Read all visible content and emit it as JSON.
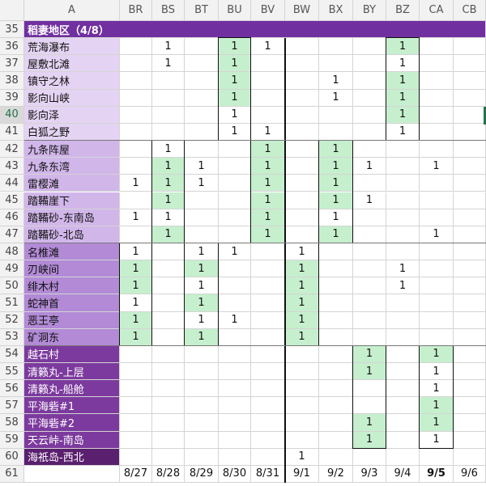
{
  "columns": {
    "row_header_label": "",
    "name_column": "A",
    "data_columns": [
      "BR",
      "BS",
      "BT",
      "BU",
      "BV",
      "BW",
      "BX",
      "BY",
      "BZ",
      "CA",
      "CB"
    ]
  },
  "section_header": {
    "row": "35",
    "title": "稻妻地区（4/8）"
  },
  "rows": [
    {
      "num": "36",
      "name": "荒海瀑布",
      "cells": [
        "",
        "1",
        "",
        "1",
        "1",
        "",
        "",
        "",
        "1",
        "",
        ""
      ]
    },
    {
      "num": "37",
      "name": "屋敷北滩",
      "cells": [
        "",
        "1",
        "",
        "1",
        "",
        "",
        "",
        "",
        "1",
        "",
        ""
      ]
    },
    {
      "num": "38",
      "name": "镇守之林",
      "cells": [
        "",
        "",
        "",
        "1",
        "",
        "",
        "1",
        "",
        "1",
        "",
        ""
      ]
    },
    {
      "num": "39",
      "name": "影向山峡",
      "cells": [
        "",
        "",
        "",
        "1",
        "",
        "",
        "1",
        "",
        "1",
        "",
        ""
      ]
    },
    {
      "num": "40",
      "name": "影向泽",
      "cells": [
        "",
        "",
        "",
        "1",
        "",
        "",
        "",
        "",
        "1",
        "",
        ""
      ]
    },
    {
      "num": "41",
      "name": "白狐之野",
      "cells": [
        "",
        "",
        "",
        "1",
        "1",
        "",
        "",
        "",
        "1",
        "",
        ""
      ]
    },
    {
      "num": "42",
      "name": "九条阵屋",
      "cells": [
        "",
        "1",
        "",
        "",
        "1",
        "",
        "1",
        "",
        "",
        "",
        ""
      ]
    },
    {
      "num": "43",
      "name": "九条东湾",
      "cells": [
        "",
        "1",
        "1",
        "",
        "1",
        "",
        "1",
        "1",
        "",
        "1",
        ""
      ]
    },
    {
      "num": "44",
      "name": "雷樱滩",
      "cells": [
        "1",
        "1",
        "1",
        "",
        "1",
        "",
        "1",
        "",
        "",
        "",
        ""
      ]
    },
    {
      "num": "45",
      "name": "踏鞴崖下",
      "cells": [
        "",
        "1",
        "",
        "",
        "1",
        "",
        "1",
        "1",
        "",
        "",
        ""
      ]
    },
    {
      "num": "46",
      "name": "踏鞴砂-东南岛",
      "cells": [
        "1",
        "1",
        "",
        "",
        "1",
        "",
        "1",
        "",
        "",
        "",
        ""
      ]
    },
    {
      "num": "47",
      "name": "踏鞴砂-北岛",
      "cells": [
        "",
        "1",
        "",
        "",
        "1",
        "",
        "1",
        "",
        "",
        "1",
        ""
      ]
    },
    {
      "num": "48",
      "name": "名椎滩",
      "cells": [
        "1",
        "",
        "1",
        "1",
        "",
        "1",
        "",
        "",
        "",
        "",
        ""
      ]
    },
    {
      "num": "49",
      "name": "刃峡间",
      "cells": [
        "1",
        "",
        "1",
        "",
        "",
        "1",
        "",
        "",
        "1",
        "",
        ""
      ]
    },
    {
      "num": "50",
      "name": "绯木村",
      "cells": [
        "1",
        "",
        "1",
        "",
        "",
        "1",
        "",
        "",
        "1",
        "",
        ""
      ]
    },
    {
      "num": "51",
      "name": "蛇神首",
      "cells": [
        "1",
        "",
        "1",
        "",
        "",
        "1",
        "",
        "",
        "",
        "",
        ""
      ]
    },
    {
      "num": "52",
      "name": "恶王亭",
      "cells": [
        "1",
        "",
        "1",
        "1",
        "",
        "1",
        "",
        "",
        "",
        "",
        ""
      ]
    },
    {
      "num": "53",
      "name": "矿洞东",
      "cells": [
        "1",
        "",
        "1",
        "",
        "",
        "1",
        "",
        "",
        "",
        "",
        ""
      ]
    },
    {
      "num": "54",
      "name": "越石村",
      "cells": [
        "",
        "",
        "",
        "",
        "",
        "",
        "",
        "1",
        "",
        "1",
        ""
      ]
    },
    {
      "num": "55",
      "name": "清籁丸-上层",
      "cells": [
        "",
        "",
        "",
        "",
        "",
        "",
        "",
        "1",
        "",
        "1",
        ""
      ]
    },
    {
      "num": "56",
      "name": "清籁丸-船舱",
      "cells": [
        "",
        "",
        "",
        "",
        "",
        "",
        "",
        "",
        "",
        "1",
        ""
      ]
    },
    {
      "num": "57",
      "name": "平海砦#1",
      "cells": [
        "",
        "",
        "",
        "",
        "",
        "",
        "",
        "",
        "",
        "1",
        ""
      ]
    },
    {
      "num": "58",
      "name": "平海砦#2",
      "cells": [
        "",
        "",
        "",
        "",
        "",
        "",
        "",
        "1",
        "",
        "1",
        ""
      ]
    },
    {
      "num": "59",
      "name": "天云峠-南岛",
      "cells": [
        "",
        "",
        "",
        "",
        "",
        "",
        "",
        "1",
        "",
        "1",
        ""
      ]
    },
    {
      "num": "60",
      "name": "海祇岛-西北",
      "cells": [
        "",
        "",
        "",
        "",
        "",
        "1",
        "",
        "",
        "",
        "",
        ""
      ]
    }
  ],
  "date_row": {
    "num": "61",
    "dates": [
      "8/27",
      "8/28",
      "8/29",
      "8/30",
      "8/31",
      "9/1",
      "9/2",
      "9/3",
      "9/4",
      "9/5",
      "9/6"
    ],
    "bold_index": 9
  },
  "colors": {
    "section_header": "#7030a0",
    "group1": "#e4d3f2",
    "group2": "#d1b6ea",
    "group3": "#b28ad6",
    "group4": "#7c3a9e",
    "group5": "#5a1f6e",
    "green": "#c6efce"
  }
}
